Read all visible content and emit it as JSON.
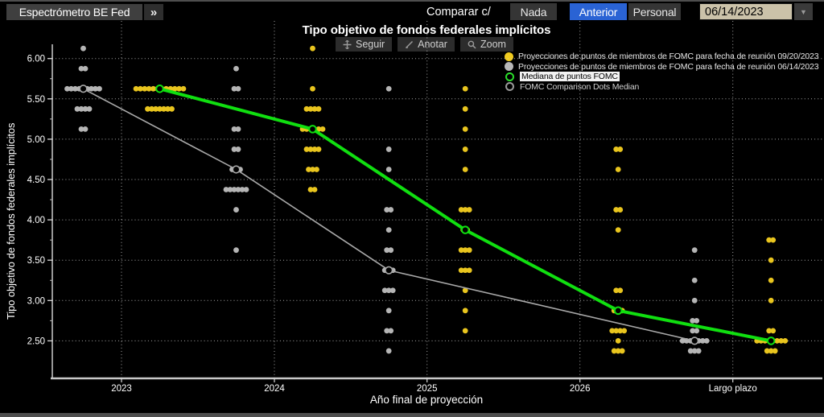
{
  "top_bar": {
    "tab_label": "Espectrómetro BE Fed",
    "tab_chevrons": "»",
    "compare_label": "Comparar c/",
    "compare_options": [
      {
        "label": "Nada",
        "selected": false
      },
      {
        "label": "Anterior",
        "selected": true
      },
      {
        "label": "Personal",
        "selected": false
      }
    ],
    "date_value": "06/14/2023",
    "date_arrow": "▼"
  },
  "chart": {
    "title": "Tipo objetivo de fondos federales implícitos",
    "toolbar": [
      {
        "name": "seguir",
        "label": "Seguir"
      },
      {
        "name": "anotar",
        "label": "Anotar"
      },
      {
        "name": "zoom",
        "label": "Zoom"
      }
    ],
    "legend": [
      {
        "label": "Proyecciones de puntos de miembros de FOMC para fecha de reunión 09/20/2023",
        "marker": "filled-dot",
        "color": "#f0cb1f",
        "highlighted": false
      },
      {
        "label": "Proyecciones de puntos de miembros de FOMC para fecha de reunión 06/14/2023",
        "marker": "filled-dot",
        "color": "#b8b8b8",
        "highlighted": false
      },
      {
        "label": "Mediana de puntos FOMC",
        "marker": "open-circle",
        "color": "#2ade2a",
        "highlighted": true
      },
      {
        "label": "FOMC Comparison Dots Median",
        "marker": "open-circle",
        "color": "#9a9a9a",
        "highlighted": false
      }
    ],
    "ylabel": "Tipo objetivo de fondos federales implícitos",
    "xlabel": "Año final de proyección"
  },
  "chart_data": {
    "type": "scatter",
    "categories": [
      "2023",
      "2024",
      "2025",
      "2026",
      "Largo plazo"
    ],
    "y_ticks": [
      6.0,
      5.5,
      5.0,
      4.5,
      4.0,
      3.5,
      3.0,
      2.5
    ],
    "ylim": [
      2.25,
      6.25
    ],
    "grid": "dotted-both-axes",
    "legend_position": "top-right",
    "series": [
      {
        "name": "Proyecciones de puntos de miembros de FOMC para fecha de reunión 09/20/2023",
        "type": "dot-columns",
        "color": "#e9c51e",
        "column": "right",
        "dots": {
          "2023": [
            [
              5.625,
              12
            ],
            [
              5.375,
              7
            ]
          ],
          "2024": [
            [
              6.125,
              1
            ],
            [
              5.625,
              1
            ],
            [
              5.375,
              4
            ],
            [
              5.125,
              6
            ],
            [
              4.875,
              4
            ],
            [
              4.625,
              3
            ],
            [
              4.375,
              2
            ]
          ],
          "2025": [
            [
              5.625,
              1
            ],
            [
              5.375,
              1
            ],
            [
              5.125,
              1
            ],
            [
              4.875,
              1
            ],
            [
              4.625,
              1
            ],
            [
              4.125,
              3
            ],
            [
              3.875,
              2
            ],
            [
              3.625,
              3
            ],
            [
              3.375,
              3
            ],
            [
              3.125,
              1
            ],
            [
              2.875,
              1
            ],
            [
              2.625,
              1
            ]
          ],
          "2026": [
            [
              4.875,
              2
            ],
            [
              4.625,
              1
            ],
            [
              4.125,
              2
            ],
            [
              3.875,
              1
            ],
            [
              3.125,
              2
            ],
            [
              2.875,
              3
            ],
            [
              2.625,
              4
            ],
            [
              2.5,
              1
            ],
            [
              2.375,
              3
            ]
          ],
          "Largo plazo": [
            [
              3.75,
              2
            ],
            [
              3.5,
              1
            ],
            [
              3.25,
              1
            ],
            [
              3.0,
              1
            ],
            [
              2.625,
              2
            ],
            [
              2.5,
              8
            ],
            [
              2.375,
              3
            ]
          ]
        }
      },
      {
        "name": "Proyecciones de puntos de miembros de FOMC para fecha de reunión 06/14/2023",
        "type": "dot-columns",
        "color": "#b5b5b5",
        "column": "left",
        "dots": {
          "2023": [
            [
              6.125,
              1
            ],
            [
              5.875,
              2
            ],
            [
              5.625,
              9
            ],
            [
              5.375,
              4
            ],
            [
              5.125,
              2
            ]
          ],
          "2024": [
            [
              5.875,
              1
            ],
            [
              5.625,
              2
            ],
            [
              5.125,
              2
            ],
            [
              4.875,
              2
            ],
            [
              4.625,
              3
            ],
            [
              4.375,
              6
            ],
            [
              4.125,
              1
            ],
            [
              3.625,
              1
            ]
          ],
          "2025": [
            [
              5.625,
              1
            ],
            [
              4.875,
              1
            ],
            [
              4.625,
              1
            ],
            [
              4.125,
              2
            ],
            [
              3.875,
              1
            ],
            [
              3.625,
              2
            ],
            [
              3.375,
              3
            ],
            [
              3.125,
              3
            ],
            [
              2.875,
              1
            ],
            [
              2.625,
              2
            ],
            [
              2.375,
              1
            ]
          ],
          "2026": [],
          "Largo plazo": [
            [
              3.625,
              1
            ],
            [
              3.25,
              1
            ],
            [
              3.0,
              1
            ],
            [
              2.75,
              2
            ],
            [
              2.625,
              2
            ],
            [
              2.5,
              7
            ],
            [
              2.375,
              3
            ]
          ]
        }
      },
      {
        "name": "Mediana de puntos FOMC",
        "type": "line-open-circles",
        "color": "#10df10",
        "column": "right",
        "width": 4,
        "medians": {
          "2023": 5.625,
          "2024": 5.125,
          "2025": 3.875,
          "2026": 2.875,
          "Largo plazo": 2.5
        }
      },
      {
        "name": "FOMC Comparison Dots Median",
        "type": "line-open-circles",
        "color": "#a8a8a8",
        "column": "left",
        "width": 1.6,
        "medians": {
          "2023": 5.625,
          "2024": 4.625,
          "2025": 3.375,
          "Largo plazo": 2.5
        }
      }
    ]
  }
}
